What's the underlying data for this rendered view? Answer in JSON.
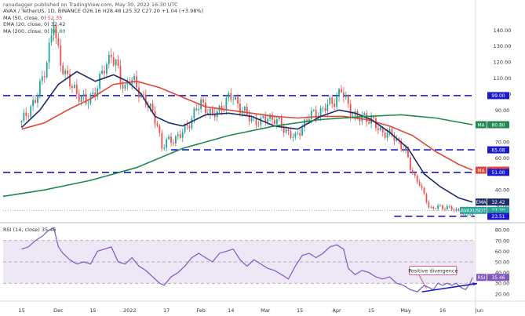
{
  "header": {
    "published": "ranadagger published on TradingView.com, May 30, 2022 16:30 UTC"
  },
  "legend": {
    "title": "AVAX / TetherUS, 1D, BINANCE",
    "ohlc": "O26.16 H28.48 L25.32 C27.20 +1.04 (+3.98%)",
    "ma50": "MA (50, close, 0)",
    "ma50_value": "52.35",
    "ema20": "EMA (20, close, 0)",
    "ema20_value": "32.42",
    "ma200": "MA (200, close, 0)",
    "ma200_value": "80.80"
  },
  "rsi_legend": {
    "label": "RSI (14, close)",
    "value": "35.46"
  },
  "colors": {
    "up": "#26a69a",
    "down": "#ef5350",
    "ma50": "#e0453a",
    "ema20": "#1f2c6b",
    "ma200": "#1e8a4f",
    "level": "#1a1acc",
    "rsi": "#7e57c2",
    "rsi_band": "#ede7f6",
    "trend": "#1a1acc",
    "divergence": "#c23b6b"
  },
  "chart_data": [
    {
      "type": "candlestick",
      "title": "AVAX / TetherUS, 1D, BINANCE",
      "price_ticks": [
        30,
        40,
        50,
        60,
        70,
        80,
        90,
        100,
        110,
        120,
        130,
        140
      ],
      "ylim": [
        20,
        148
      ],
      "x_ticks": [
        "15",
        "Dec",
        "15",
        "2022",
        "17",
        "Feb",
        "14",
        "Mar",
        "15",
        "Apr",
        "15",
        "May",
        "16",
        "Jun"
      ],
      "x_tick_days": [
        0,
        16,
        31,
        47,
        63,
        78,
        91,
        106,
        121,
        137,
        152,
        167,
        183,
        199
      ],
      "xlim": [
        -8,
        197
      ],
      "last_day": 196,
      "closes": [
        [
          0,
          82
        ],
        [
          3,
          90
        ],
        [
          6,
          96
        ],
        [
          8,
          104
        ],
        [
          10,
          116
        ],
        [
          12,
          128
        ],
        [
          13,
          136
        ],
        [
          14,
          146
        ],
        [
          15,
          132
        ],
        [
          17,
          122
        ],
        [
          19,
          112
        ],
        [
          22,
          104
        ],
        [
          25,
          100
        ],
        [
          28,
          94
        ],
        [
          31,
          100
        ],
        [
          34,
          108
        ],
        [
          36,
          116
        ],
        [
          38,
          122
        ],
        [
          39,
          126
        ],
        [
          41,
          118
        ],
        [
          43,
          108
        ],
        [
          45,
          104
        ],
        [
          47,
          110
        ],
        [
          50,
          104
        ],
        [
          53,
          98
        ],
        [
          56,
          90
        ],
        [
          59,
          82
        ],
        [
          61,
          66
        ],
        [
          63,
          70
        ],
        [
          66,
          72
        ],
        [
          69,
          74
        ],
        [
          72,
          80
        ],
        [
          75,
          88
        ],
        [
          78,
          94
        ],
        [
          80,
          92
        ],
        [
          83,
          86
        ],
        [
          86,
          90
        ],
        [
          89,
          96
        ],
        [
          92,
          98
        ],
        [
          95,
          92
        ],
        [
          98,
          86
        ],
        [
          101,
          84
        ],
        [
          104,
          82
        ],
        [
          107,
          86
        ],
        [
          110,
          84
        ],
        [
          113,
          80
        ],
        [
          116,
          76
        ],
        [
          119,
          72
        ],
        [
          122,
          80
        ],
        [
          125,
          86
        ],
        [
          128,
          88
        ],
        [
          131,
          90
        ],
        [
          134,
          94
        ],
        [
          137,
          98
        ],
        [
          139,
          102
        ],
        [
          141,
          96
        ],
        [
          143,
          90
        ],
        [
          146,
          84
        ],
        [
          149,
          86
        ],
        [
          152,
          84
        ],
        [
          155,
          78
        ],
        [
          158,
          76
        ],
        [
          161,
          74
        ],
        [
          164,
          70
        ],
        [
          167,
          64
        ],
        [
          169,
          54
        ],
        [
          171,
          48
        ],
        [
          173,
          44
        ],
        [
          175,
          36
        ],
        [
          177,
          30
        ],
        [
          179,
          28
        ],
        [
          181,
          30
        ],
        [
          183,
          28
        ],
        [
          185,
          30
        ],
        [
          187,
          28
        ],
        [
          189,
          27
        ],
        [
          191,
          26
        ],
        [
          193,
          24
        ],
        [
          195,
          25
        ],
        [
          196,
          27.2
        ]
      ],
      "series": [
        {
          "name": "MA (50, close, 0)",
          "points": [
            [
              0,
              78
            ],
            [
              10,
              82
            ],
            [
              20,
              90
            ],
            [
              30,
              97
            ],
            [
              40,
              106
            ],
            [
              50,
              108
            ],
            [
              60,
              104
            ],
            [
              70,
              98
            ],
            [
              80,
              92
            ],
            [
              90,
              90
            ],
            [
              100,
              88
            ],
            [
              110,
              86
            ],
            [
              120,
              85
            ],
            [
              130,
              86
            ],
            [
              140,
              86
            ],
            [
              150,
              84
            ],
            [
              160,
              80
            ],
            [
              170,
              74
            ],
            [
              180,
              64
            ],
            [
              190,
              56
            ],
            [
              196,
              52.35
            ]
          ]
        },
        {
          "name": "EMA (20, close, 0)",
          "points": [
            [
              0,
              79
            ],
            [
              8,
              90
            ],
            [
              16,
              106
            ],
            [
              24,
              114
            ],
            [
              32,
              108
            ],
            [
              40,
              112
            ],
            [
              46,
              108
            ],
            [
              52,
              100
            ],
            [
              58,
              86
            ],
            [
              64,
              82
            ],
            [
              70,
              80
            ],
            [
              80,
              87
            ],
            [
              90,
              88
            ],
            [
              100,
              86
            ],
            [
              110,
              80
            ],
            [
              120,
              78
            ],
            [
              130,
              86
            ],
            [
              138,
              90
            ],
            [
              145,
              88
            ],
            [
              152,
              84
            ],
            [
              160,
              76
            ],
            [
              168,
              66
            ],
            [
              175,
              50
            ],
            [
              182,
              42
            ],
            [
              190,
              35
            ],
            [
              196,
              32.42
            ]
          ]
        },
        {
          "name": "MA (200, close, 0)",
          "points": [
            [
              -8,
              36
            ],
            [
              10,
              40
            ],
            [
              30,
              46
            ],
            [
              50,
              54
            ],
            [
              70,
              66
            ],
            [
              90,
              74
            ],
            [
              110,
              80
            ],
            [
              130,
              84
            ],
            [
              150,
              86
            ],
            [
              165,
              87
            ],
            [
              180,
              85
            ],
            [
              196,
              80.8
            ]
          ]
        }
      ],
      "levels": [
        99.0,
        65.08,
        51.0,
        23.51
      ],
      "price_labels": [
        {
          "text": "99.00",
          "value": 99.0
        },
        {
          "text": "80.80",
          "value": 80.8
        },
        {
          "text": "65.08",
          "value": 65.08
        },
        {
          "text": "52.35",
          "value": 52.35
        },
        {
          "text": "51.00",
          "value": 51.0
        },
        {
          "text": "32.42",
          "value": 32.42
        },
        {
          "text": "27.20",
          "value": 27.2
        },
        {
          "text": "05:29:43",
          "value": 24.9
        },
        {
          "text": "23.51",
          "value": 23.51
        }
      ],
      "side_labels": [
        {
          "text": "MA",
          "value": 80.8
        },
        {
          "text": "MA",
          "value": 52.35
        },
        {
          "text": "EMA",
          "value": 32.42
        },
        {
          "text": "AVAXUSDT",
          "value": 27.2
        }
      ]
    },
    {
      "type": "line",
      "title": "RSI (14, close)",
      "y_ticks": [
        20,
        30,
        40,
        50,
        60,
        70,
        80
      ],
      "ylim": [
        14,
        86
      ],
      "band": [
        30,
        70
      ],
      "points": [
        [
          0,
          62
        ],
        [
          3,
          64
        ],
        [
          6,
          70
        ],
        [
          9,
          74
        ],
        [
          12,
          80
        ],
        [
          14,
          82
        ],
        [
          16,
          64
        ],
        [
          18,
          58
        ],
        [
          21,
          52
        ],
        [
          24,
          48
        ],
        [
          27,
          50
        ],
        [
          30,
          48
        ],
        [
          33,
          60
        ],
        [
          36,
          62
        ],
        [
          39,
          64
        ],
        [
          42,
          50
        ],
        [
          45,
          48
        ],
        [
          48,
          54
        ],
        [
          51,
          46
        ],
        [
          54,
          42
        ],
        [
          57,
          36
        ],
        [
          60,
          30
        ],
        [
          62,
          28
        ],
        [
          65,
          36
        ],
        [
          68,
          40
        ],
        [
          71,
          46
        ],
        [
          74,
          54
        ],
        [
          77,
          58
        ],
        [
          80,
          54
        ],
        [
          83,
          50
        ],
        [
          86,
          58
        ],
        [
          89,
          60
        ],
        [
          92,
          62
        ],
        [
          95,
          52
        ],
        [
          98,
          46
        ],
        [
          101,
          52
        ],
        [
          104,
          48
        ],
        [
          107,
          44
        ],
        [
          110,
          42
        ],
        [
          113,
          38
        ],
        [
          116,
          34
        ],
        [
          119,
          46
        ],
        [
          122,
          56
        ],
        [
          125,
          58
        ],
        [
          128,
          54
        ],
        [
          131,
          58
        ],
        [
          134,
          64
        ],
        [
          137,
          66
        ],
        [
          140,
          62
        ],
        [
          142,
          44
        ],
        [
          145,
          38
        ],
        [
          148,
          42
        ],
        [
          151,
          40
        ],
        [
          154,
          36
        ],
        [
          157,
          34
        ],
        [
          160,
          36
        ],
        [
          163,
          30
        ],
        [
          166,
          28
        ],
        [
          169,
          24
        ],
        [
          172,
          22
        ],
        [
          175,
          28
        ],
        [
          177,
          26
        ],
        [
          179,
          24
        ],
        [
          181,
          30
        ],
        [
          183,
          28
        ],
        [
          185,
          30
        ],
        [
          187,
          28
        ],
        [
          189,
          30
        ],
        [
          191,
          26
        ],
        [
          193,
          24
        ],
        [
          195,
          30
        ],
        [
          196,
          35.46
        ]
      ],
      "trendline": [
        [
          174,
          22
        ],
        [
          196,
          29
        ]
      ],
      "annotation": "Positive divergence",
      "value_label": "35.46"
    }
  ]
}
